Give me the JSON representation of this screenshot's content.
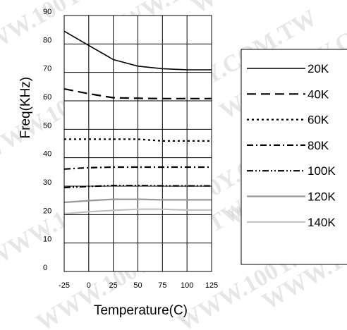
{
  "watermark": "WWW.100Y.COM.TW",
  "chart_data": {
    "type": "line",
    "xlabel": "Temperature(C)",
    "ylabel": "Freq(KHz)",
    "xlim": [
      -25,
      125
    ],
    "ylim": [
      0,
      90
    ],
    "xticks": [
      "-25",
      "0",
      "25",
      "50",
      "75",
      "100",
      "125"
    ],
    "yticks": [
      "0",
      "10",
      "20",
      "30",
      "40",
      "50",
      "60",
      "70",
      "80",
      "90"
    ],
    "grid": true,
    "legend_position": "right",
    "x": [
      -25,
      0,
      25,
      50,
      75,
      100,
      125
    ],
    "series": [
      {
        "name": "20K",
        "style": "solid",
        "color": "#000000",
        "values": [
          84.5,
          79.5,
          74.5,
          72.2,
          71.3,
          70.9,
          70.9
        ]
      },
      {
        "name": "40K",
        "style": "long-dash",
        "color": "#000000",
        "values": [
          64.2,
          62.5,
          61.1,
          60.9,
          60.8,
          60.8,
          60.8
        ]
      },
      {
        "name": "60K",
        "style": "dotted",
        "color": "#000000",
        "values": [
          46.5,
          46.5,
          46.5,
          46.5,
          45.9,
          45.9,
          45.9
        ]
      },
      {
        "name": "80K",
        "style": "dash-dot",
        "color": "#000000",
        "values": [
          36.0,
          36.5,
          36.7,
          36.7,
          36.7,
          36.7,
          36.7
        ]
      },
      {
        "name": "100K",
        "style": "dash-dot-dot",
        "color": "#000000",
        "values": [
          29.5,
          29.9,
          30.2,
          30.2,
          30.1,
          30.1,
          30.1
        ]
      },
      {
        "name": "120K",
        "style": "solid",
        "color": "#999999",
        "values": [
          24.3,
          24.9,
          25.4,
          25.4,
          25.2,
          25.2,
          25.2
        ]
      },
      {
        "name": "140K",
        "style": "solid",
        "color": "#c0c0c0",
        "values": [
          20.3,
          21.0,
          21.5,
          21.9,
          21.9,
          21.6,
          21.6
        ]
      }
    ]
  }
}
